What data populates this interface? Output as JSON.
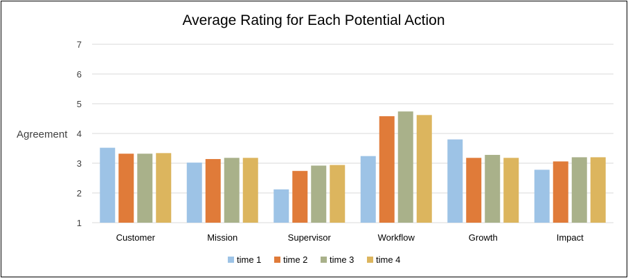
{
  "chart_data": {
    "type": "bar",
    "title": "Average Rating for Each Potential Action",
    "ylabel": "Agreement",
    "xlabel": "",
    "ylim": [
      1,
      7
    ],
    "yticks": [
      "1",
      "2",
      "3",
      "4",
      "5",
      "6",
      "7"
    ],
    "grid": true,
    "legend_position": "bottom",
    "categories": [
      "Customer",
      "Mission",
      "Supervisor",
      "Workflow",
      "Growth",
      "Impact"
    ],
    "series": [
      {
        "name": "time 1",
        "color": "#9dc3e6",
        "values": [
          3.52,
          3.02,
          2.12,
          3.24,
          3.8,
          2.78
        ]
      },
      {
        "name": "time 2",
        "color": "#e07b39",
        "values": [
          3.32,
          3.14,
          2.74,
          4.58,
          3.18,
          3.06
        ]
      },
      {
        "name": "time 3",
        "color": "#a9b18a",
        "values": [
          3.32,
          3.18,
          2.92,
          4.74,
          3.28,
          3.2
        ]
      },
      {
        "name": "time 4",
        "color": "#dcb55e",
        "values": [
          3.34,
          3.18,
          2.94,
          4.62,
          3.18,
          3.2
        ]
      }
    ]
  }
}
